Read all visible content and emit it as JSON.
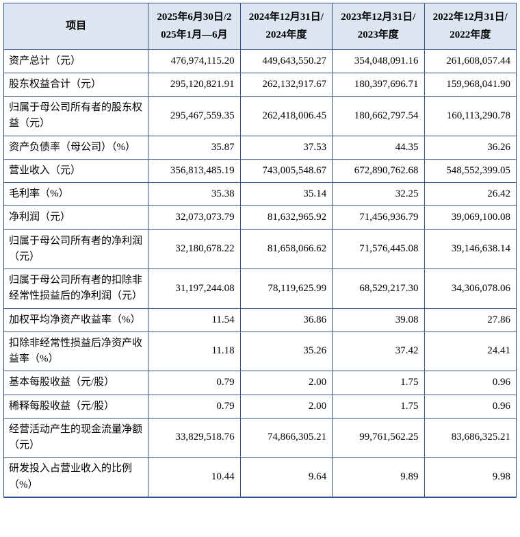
{
  "colors": {
    "header_bg": "#dce6f1",
    "border": "#34558b",
    "bottom_rule": "#2f5496",
    "text": "#000000"
  },
  "table": {
    "columns": [
      "项目",
      "2025年6月30日/2025年1月—6月",
      "2024年12月31日/2024年度",
      "2023年12月31日/2023年度",
      "2022年12月31日/2022年度"
    ],
    "rows": [
      {
        "label": "资产总计（元）",
        "values": [
          "476,974,115.20",
          "449,643,550.27",
          "354,048,091.16",
          "261,608,057.44"
        ]
      },
      {
        "label": "股东权益合计（元）",
        "values": [
          "295,120,821.91",
          "262,132,917.67",
          "180,397,696.71",
          "159,968,041.90"
        ]
      },
      {
        "label": "归属于母公司所有者的股东权益（元）",
        "values": [
          "295,467,559.35",
          "262,418,006.45",
          "180,662,797.54",
          "160,113,290.78"
        ]
      },
      {
        "label": "资产负债率（母公司）（%）",
        "values": [
          "35.87",
          "37.53",
          "44.35",
          "36.26"
        ]
      },
      {
        "label": "营业收入（元）",
        "values": [
          "356,813,485.19",
          "743,005,548.67",
          "672,890,762.68",
          "548,552,399.05"
        ]
      },
      {
        "label": "毛利率（%）",
        "values": [
          "35.38",
          "35.14",
          "32.25",
          "26.42"
        ]
      },
      {
        "label": "净利润（元）",
        "values": [
          "32,073,073.79",
          "81,632,965.92",
          "71,456,936.79",
          "39,069,100.08"
        ]
      },
      {
        "label": "归属于母公司所有者的净利润（元）",
        "values": [
          "32,180,678.22",
          "81,658,066.62",
          "71,576,445.08",
          "39,146,638.14"
        ]
      },
      {
        "label": "归属于母公司所有者的扣除非经常性损益后的净利润（元）",
        "values": [
          "31,197,244.08",
          "78,119,625.99",
          "68,529,217.30",
          "34,306,078.06"
        ]
      },
      {
        "label": "加权平均净资产收益率（%）",
        "values": [
          "11.54",
          "36.86",
          "39.08",
          "27.86"
        ]
      },
      {
        "label": "扣除非经常性损益后净资产收益率（%）",
        "values": [
          "11.18",
          "35.26",
          "37.42",
          "24.41"
        ]
      },
      {
        "label": "基本每股收益（元/股）",
        "values": [
          "0.79",
          "2.00",
          "1.75",
          "0.96"
        ]
      },
      {
        "label": "稀释每股收益（元/股）",
        "values": [
          "0.79",
          "2.00",
          "1.75",
          "0.96"
        ]
      },
      {
        "label": "经营活动产生的现金流量净额（元）",
        "values": [
          "33,829,518.76",
          "74,866,305.21",
          "99,761,562.25",
          "83,686,325.21"
        ]
      },
      {
        "label": "研发投入占营业收入的比例（%）",
        "values": [
          "10.44",
          "9.64",
          "9.89",
          "9.98"
        ]
      }
    ]
  }
}
